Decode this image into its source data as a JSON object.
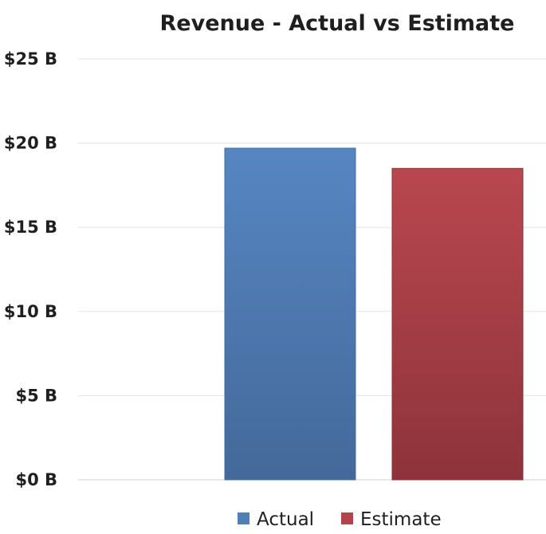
{
  "chart_data": {
    "type": "bar",
    "title": "Revenue - Actual vs Estimate",
    "xlabel": "",
    "ylabel": "",
    "categories": [
      ""
    ],
    "series": [
      {
        "name": "Actual",
        "values": [
          19.7
        ],
        "color": "#4f7fb8"
      },
      {
        "name": "Estimate",
        "values": [
          18.5
        ],
        "color": "#b2434c"
      }
    ],
    "ylim": [
      0,
      25
    ],
    "yticks": [
      0,
      5,
      10,
      15,
      20,
      25
    ],
    "ytick_labels": [
      "$0 B",
      "$5 B",
      "$10 B",
      "$15 B",
      "$20 B",
      "$25 B"
    ],
    "grid": true,
    "legend_position": "bottom"
  }
}
